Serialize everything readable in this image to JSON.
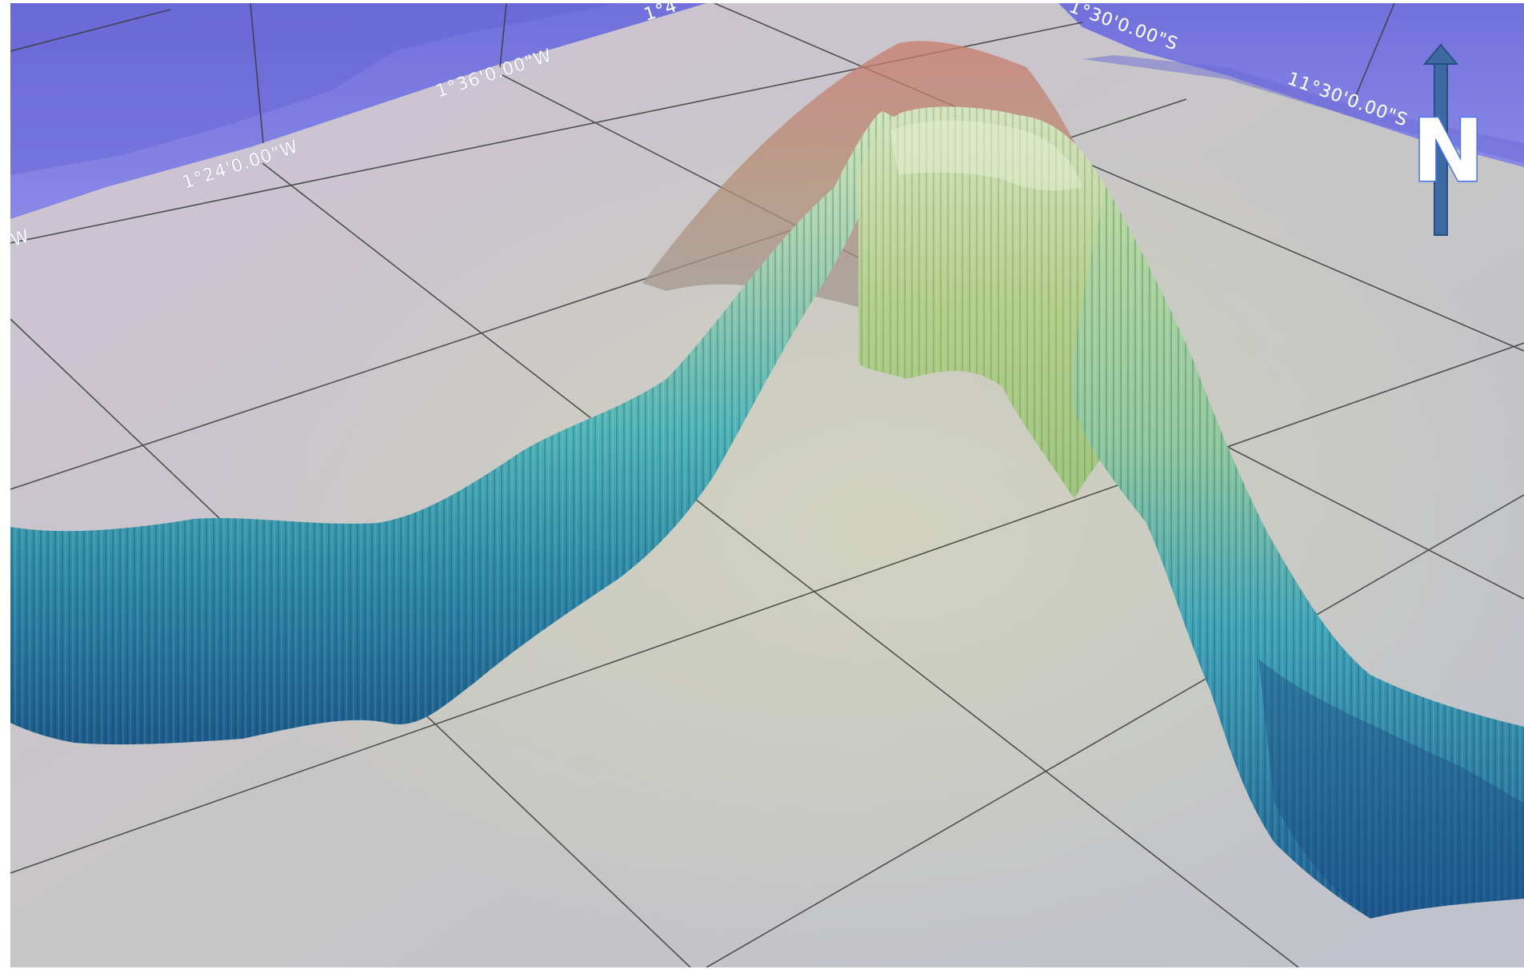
{
  "map": {
    "graticule_labels": {
      "left_edge": "W",
      "lon_1": "1°24'0.00\"W",
      "lon_2": "1°36'0.00\"W",
      "top_cut": "1°4",
      "top_right_cut": "1°30'0.00\"S",
      "right": "11°30'0.00\"S"
    },
    "north_arrow": {
      "label": "N",
      "icon": "north-arrow-icon"
    },
    "colors": {
      "sea_plane": "#7272e0",
      "ground_plane": "#c6c3cf",
      "relief_peak": "#c4826e",
      "relief_high": "#b7d49a",
      "relief_mid": "#4fb7bd",
      "relief_low": "#1f5f8f",
      "grid_line": "#333333"
    }
  }
}
